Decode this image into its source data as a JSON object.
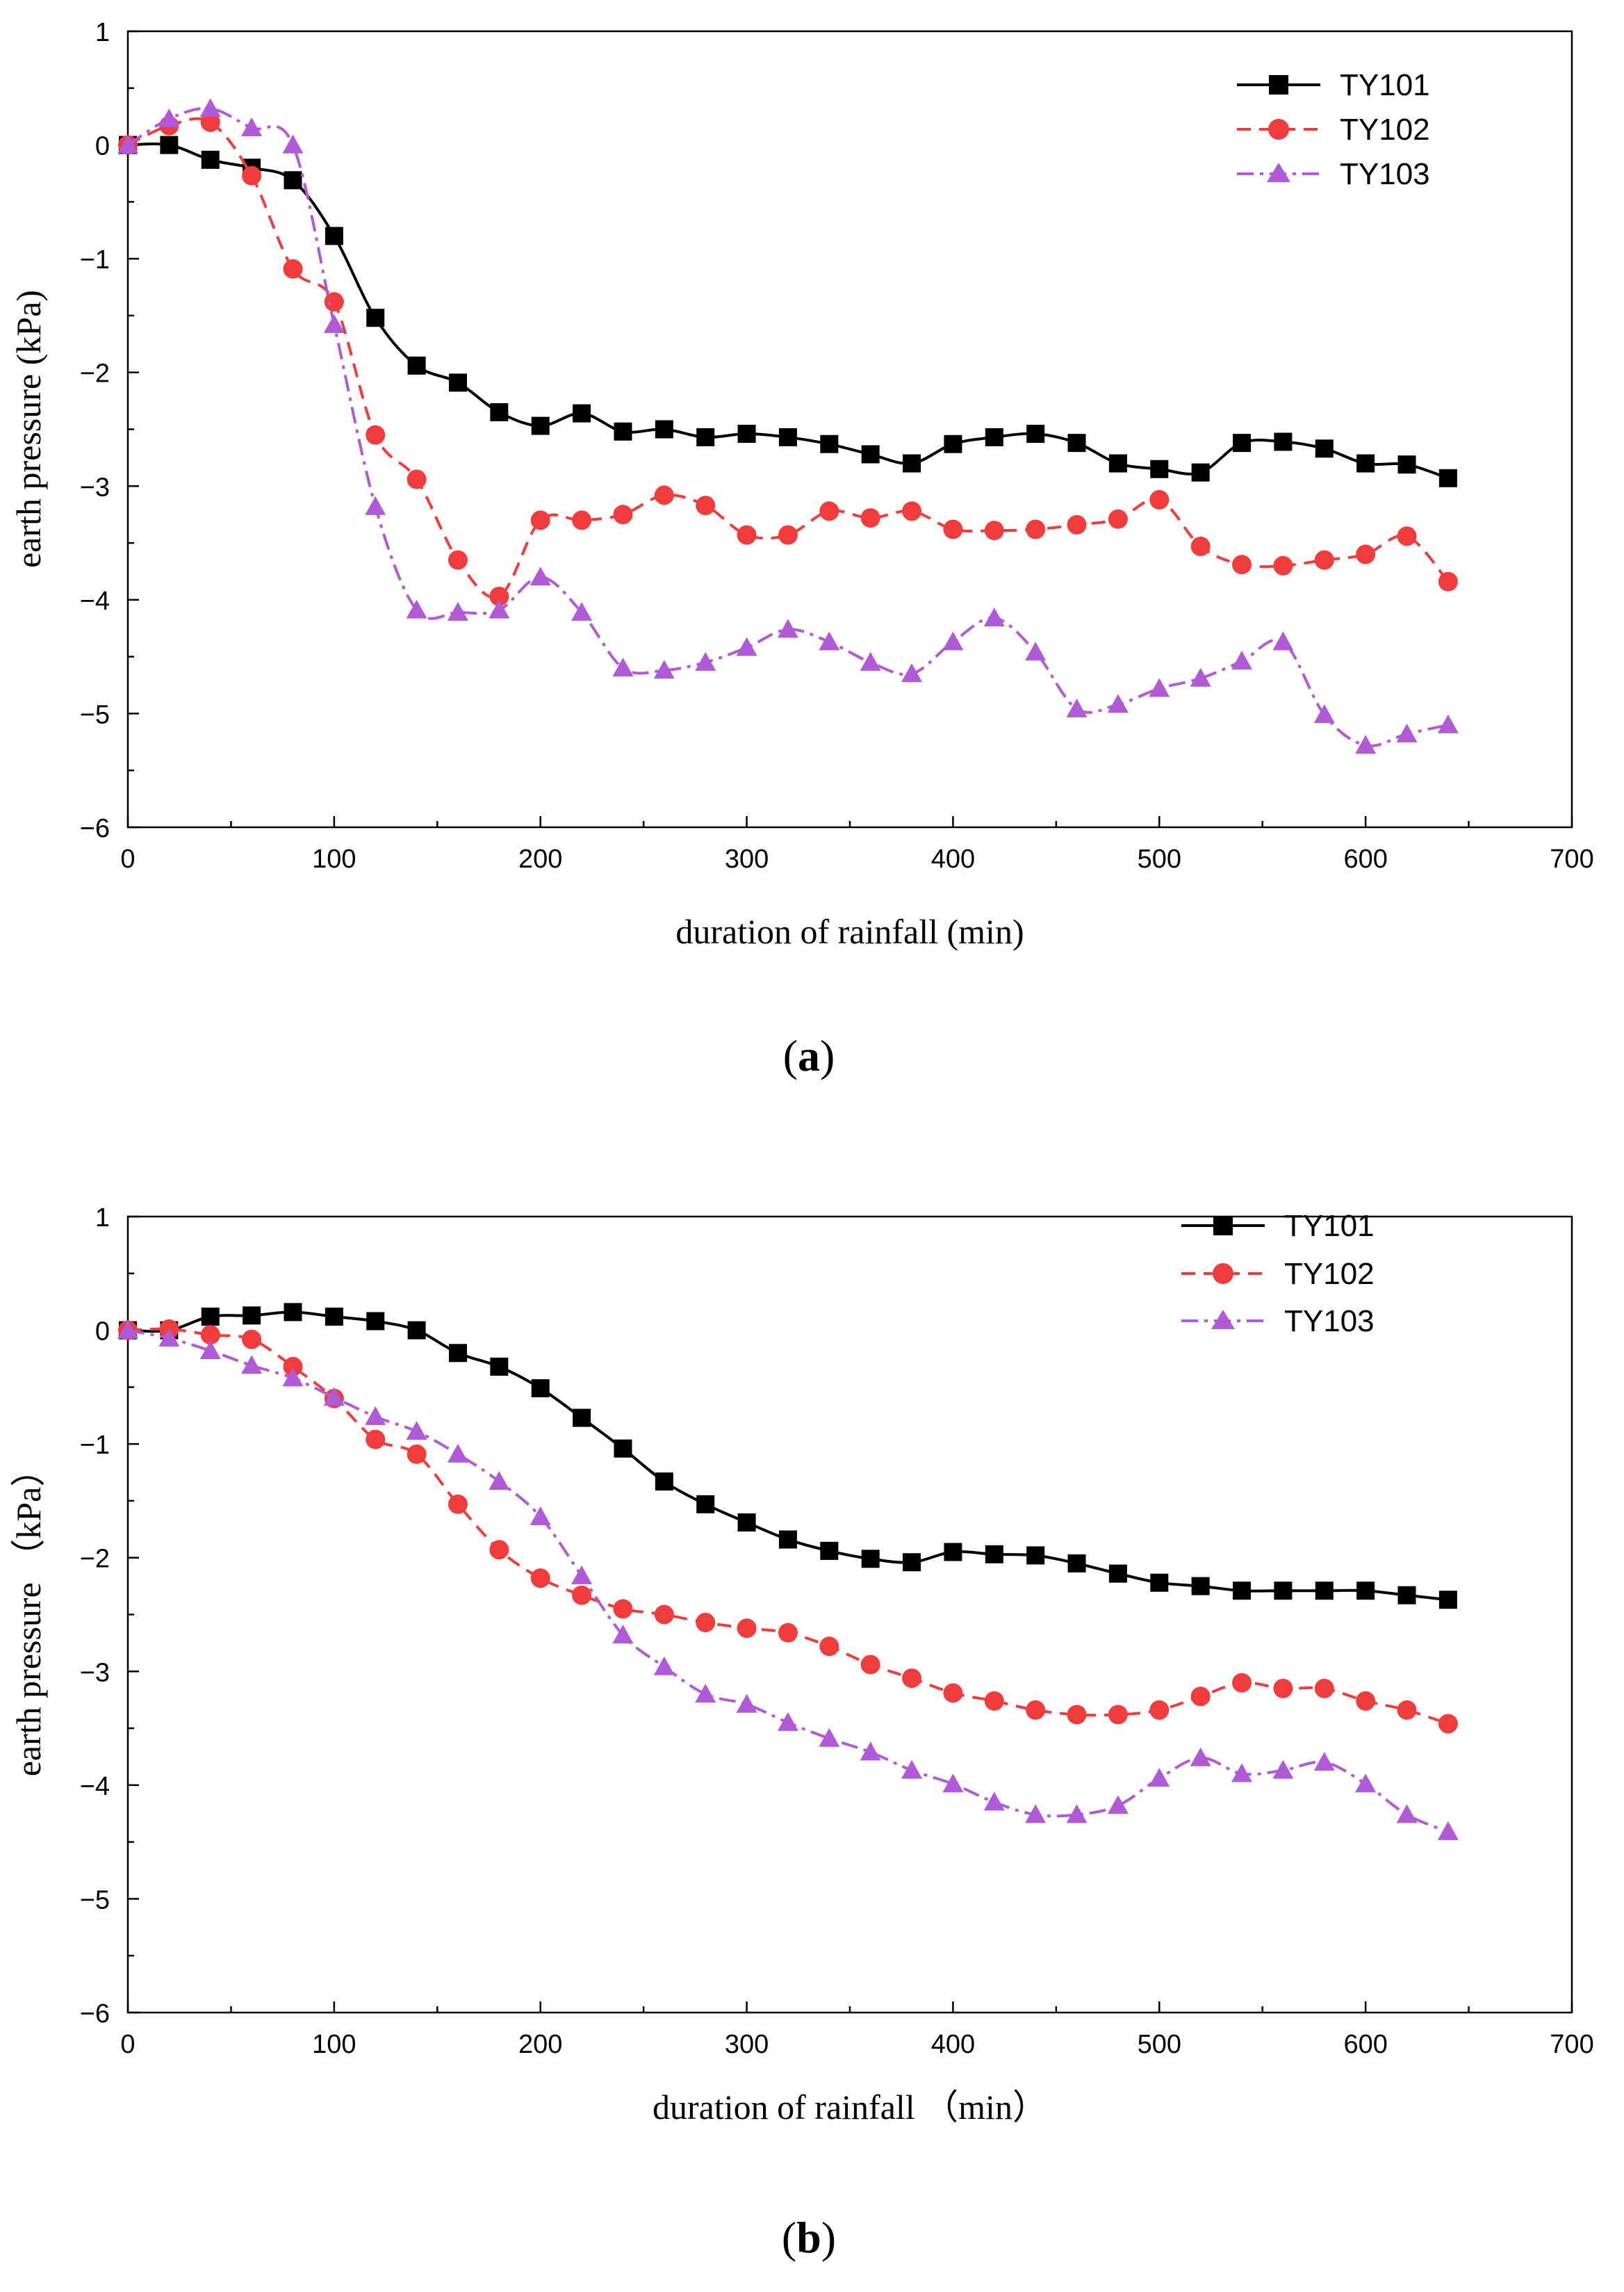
{
  "chart_data": [
    {
      "type": "line",
      "panel": "a",
      "caption": "a",
      "xlabel": "duration of rainfall (min)",
      "ylabel": "earth pressure (kPa)",
      "xlim": [
        0,
        700
      ],
      "ylim": [
        -6,
        1
      ],
      "xticks": [
        0,
        100,
        200,
        300,
        400,
        500,
        600,
        700
      ],
      "yticks": [
        1,
        0,
        -1,
        -2,
        -3,
        -4,
        -5,
        -6
      ],
      "legend_position": "top-right",
      "x": [
        0,
        20,
        40,
        60,
        80,
        100,
        120,
        140,
        160,
        180,
        200,
        220,
        240,
        260,
        280,
        300,
        320,
        340,
        360,
        380,
        400,
        420,
        440,
        460,
        480,
        500,
        520,
        540,
        560,
        580,
        600,
        620,
        640
      ],
      "series": [
        {
          "name": "TY101",
          "color": "#000000",
          "marker": "square",
          "dash": "solid",
          "values": [
            0,
            0,
            -0.13,
            -0.2,
            -0.31,
            -0.8,
            -1.52,
            -1.94,
            -2.09,
            -2.35,
            -2.47,
            -2.36,
            -2.52,
            -2.5,
            -2.57,
            -2.54,
            -2.57,
            -2.63,
            -2.72,
            -2.8,
            -2.63,
            -2.57,
            -2.54,
            -2.62,
            -2.8,
            -2.85,
            -2.88,
            -2.62,
            -2.61,
            -2.67,
            -2.8,
            -2.81,
            -2.93
          ]
        },
        {
          "name": "TY102",
          "color": "#f03c3c",
          "marker": "circle",
          "dash": "dash",
          "values": [
            0,
            0.17,
            0.2,
            -0.27,
            -1.09,
            -1.38,
            -2.55,
            -2.94,
            -3.65,
            -3.97,
            -3.3,
            -3.3,
            -3.25,
            -3.08,
            -3.17,
            -3.43,
            -3.43,
            -3.22,
            -3.28,
            -3.22,
            -3.38,
            -3.39,
            -3.38,
            -3.34,
            -3.29,
            -3.12,
            -3.53,
            -3.69,
            -3.7,
            -3.65,
            -3.6,
            -3.44,
            -3.84
          ]
        },
        {
          "name": "TY103",
          "color": "#b05ad8",
          "marker": "triangle",
          "dash": "dashdot",
          "values": [
            0,
            0.23,
            0.32,
            0.15,
            0,
            -1.58,
            -3.18,
            -4.09,
            -4.11,
            -4.09,
            -3.8,
            -4.11,
            -4.6,
            -4.62,
            -4.55,
            -4.42,
            -4.26,
            -4.37,
            -4.55,
            -4.65,
            -4.37,
            -4.16,
            -4.46,
            -4.96,
            -4.92,
            -4.78,
            -4.69,
            -4.54,
            -4.37,
            -5.01,
            -5.28,
            -5.18,
            -5.1
          ]
        }
      ]
    },
    {
      "type": "line",
      "panel": "b",
      "caption": "b",
      "xlabel": "duration of rainfall （min）",
      "ylabel": "earth pressure （kPa）",
      "xlim": [
        0,
        700
      ],
      "ylim": [
        -6,
        1
      ],
      "xticks": [
        0,
        100,
        200,
        300,
        400,
        500,
        600,
        700
      ],
      "yticks": [
        1,
        0,
        -1,
        -2,
        -3,
        -4,
        -5,
        -6
      ],
      "legend_position": "top-right",
      "x": [
        0,
        20,
        40,
        60,
        80,
        100,
        120,
        140,
        160,
        180,
        200,
        220,
        240,
        260,
        280,
        300,
        320,
        340,
        360,
        380,
        400,
        420,
        440,
        460,
        480,
        500,
        520,
        540,
        560,
        580,
        600,
        620,
        640
      ],
      "series": [
        {
          "name": "TY101",
          "color": "#000000",
          "marker": "square",
          "dash": "solid",
          "values": [
            0,
            0,
            0.12,
            0.13,
            0.16,
            0.12,
            0.08,
            0,
            -0.2,
            -0.32,
            -0.51,
            -0.77,
            -1.04,
            -1.33,
            -1.53,
            -1.69,
            -1.84,
            -1.94,
            -2.01,
            -2.04,
            -1.95,
            -1.97,
            -1.98,
            -2.05,
            -2.14,
            -2.22,
            -2.25,
            -2.29,
            -2.29,
            -2.29,
            -2.29,
            -2.33,
            -2.37
          ]
        },
        {
          "name": "TY102",
          "color": "#f03c3c",
          "marker": "circle",
          "dash": "dash",
          "values": [
            0,
            0.01,
            -0.04,
            -0.08,
            -0.32,
            -0.6,
            -0.96,
            -1.09,
            -1.53,
            -1.93,
            -2.18,
            -2.33,
            -2.45,
            -2.5,
            -2.57,
            -2.62,
            -2.66,
            -2.78,
            -2.94,
            -3.06,
            -3.19,
            -3.26,
            -3.34,
            -3.38,
            -3.38,
            -3.34,
            -3.22,
            -3.1,
            -3.15,
            -3.15,
            -3.26,
            -3.34,
            -3.46
          ]
        },
        {
          "name": "TY103",
          "color": "#b05ad8",
          "marker": "triangle",
          "dash": "dashdot",
          "values": [
            0,
            -0.07,
            -0.18,
            -0.31,
            -0.42,
            -0.59,
            -0.76,
            -0.89,
            -1.09,
            -1.33,
            -1.64,
            -2.16,
            -2.68,
            -2.96,
            -3.2,
            -3.29,
            -3.45,
            -3.59,
            -3.71,
            -3.87,
            -3.99,
            -4.15,
            -4.26,
            -4.26,
            -4.18,
            -3.94,
            -3.76,
            -3.9,
            -3.87,
            -3.8,
            -3.99,
            -4.26,
            -4.41
          ]
        }
      ]
    }
  ]
}
